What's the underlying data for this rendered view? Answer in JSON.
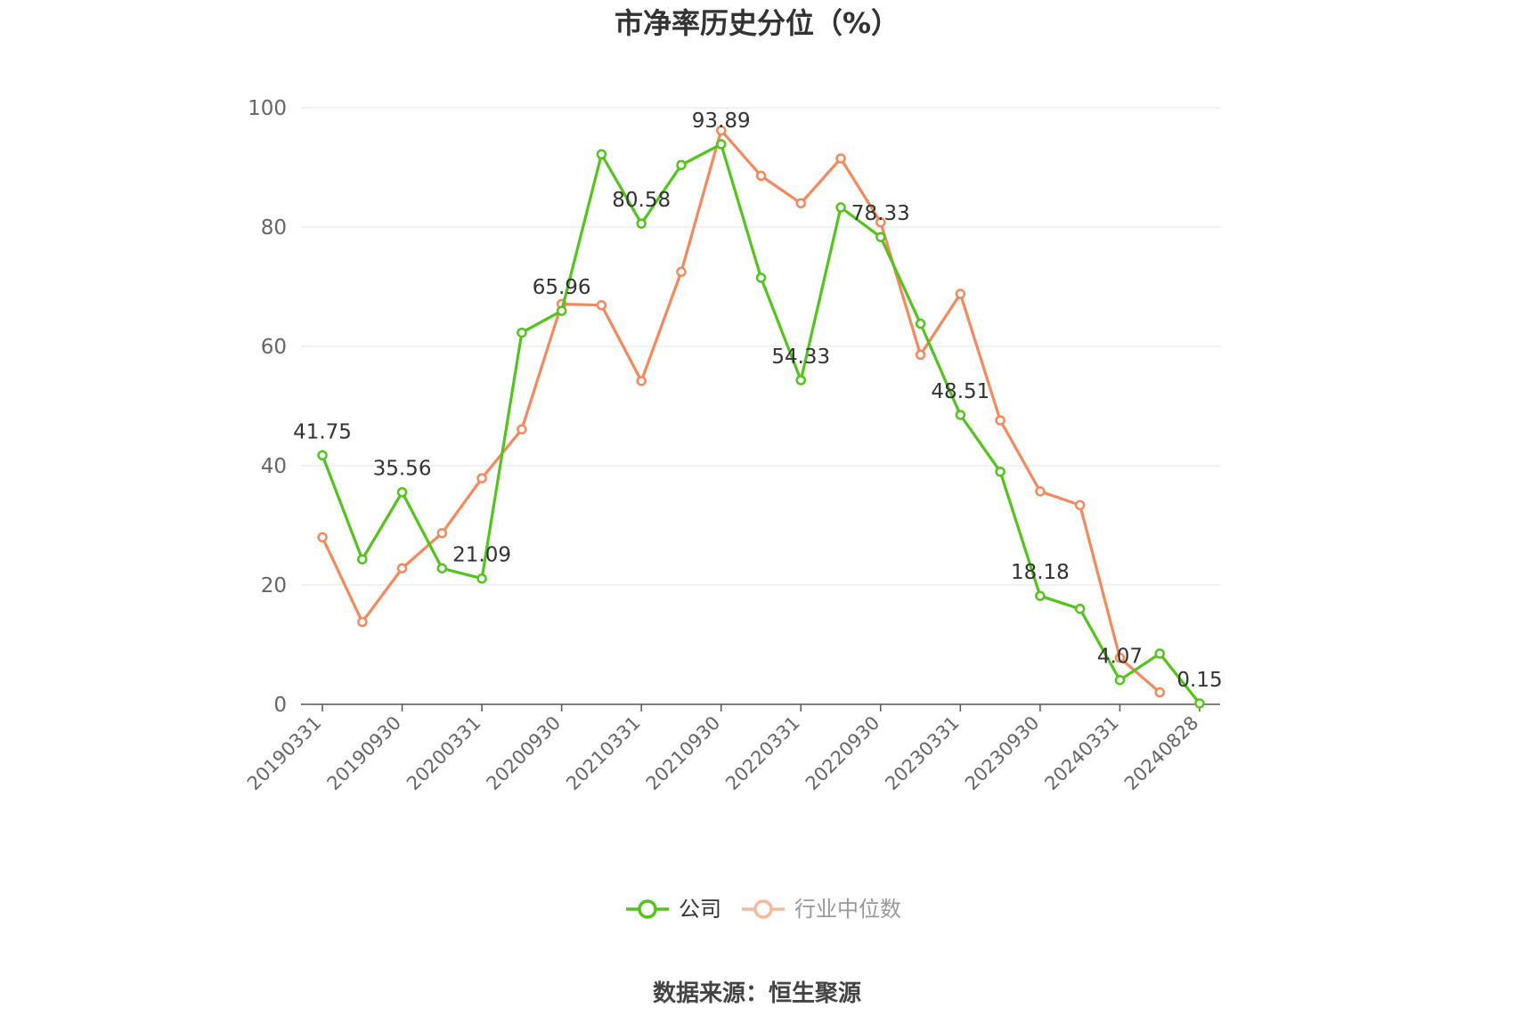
{
  "chart_data": {
    "type": "line",
    "title": "市净率历史分位（%）",
    "source": "数据来源：恒生聚源",
    "ylim": [
      0,
      100
    ],
    "yticks": [
      0,
      20,
      40,
      60,
      80,
      100
    ],
    "grid": true,
    "legend_position": "bottom-center",
    "x": [
      "20190331",
      "20190630",
      "20190930",
      "20191231",
      "20200331",
      "20200630",
      "20200930",
      "20201231",
      "20210331",
      "20210630",
      "20210930",
      "20211231",
      "20220331",
      "20220630",
      "20220930",
      "20221231",
      "20230331",
      "20230630",
      "20230930",
      "20231231",
      "20240331",
      "20240630",
      "20240828"
    ],
    "xtick_labels": [
      "20190331",
      "20190930",
      "20200331",
      "20200930",
      "20210331",
      "20210930",
      "20220331",
      "20220930",
      "20230331",
      "20230930",
      "20240331",
      "20240828"
    ],
    "series": [
      {
        "name": "公司",
        "color": "#52c41a",
        "values": [
          41.75,
          24.3,
          35.56,
          22.8,
          21.09,
          62.3,
          65.96,
          92.2,
          80.58,
          90.4,
          93.89,
          71.5,
          54.33,
          83.3,
          78.33,
          63.8,
          48.51,
          39.0,
          18.18,
          16.0,
          4.07,
          8.5,
          0.15
        ],
        "data_labels": [
          {
            "index": 0,
            "text": "41.75"
          },
          {
            "index": 2,
            "text": "35.56"
          },
          {
            "index": 4,
            "text": "21.09"
          },
          {
            "index": 6,
            "text": "65.96"
          },
          {
            "index": 8,
            "text": "80.58"
          },
          {
            "index": 10,
            "text": "93.89"
          },
          {
            "index": 12,
            "text": "54.33"
          },
          {
            "index": 14,
            "text": "78.33"
          },
          {
            "index": 16,
            "text": "48.51"
          },
          {
            "index": 18,
            "text": "18.18"
          },
          {
            "index": 20,
            "text": "4.07"
          },
          {
            "index": 22,
            "text": "0.15"
          }
        ]
      },
      {
        "name": "行业中位数",
        "color": "#f5895b",
        "values": [
          28.0,
          13.8,
          22.8,
          28.7,
          37.9,
          46.1,
          67.1,
          66.9,
          54.2,
          72.5,
          96.2,
          88.6,
          84.0,
          91.5,
          80.8,
          58.6,
          68.8,
          47.6,
          35.7,
          33.4,
          7.8,
          2.0,
          null
        ]
      }
    ]
  }
}
